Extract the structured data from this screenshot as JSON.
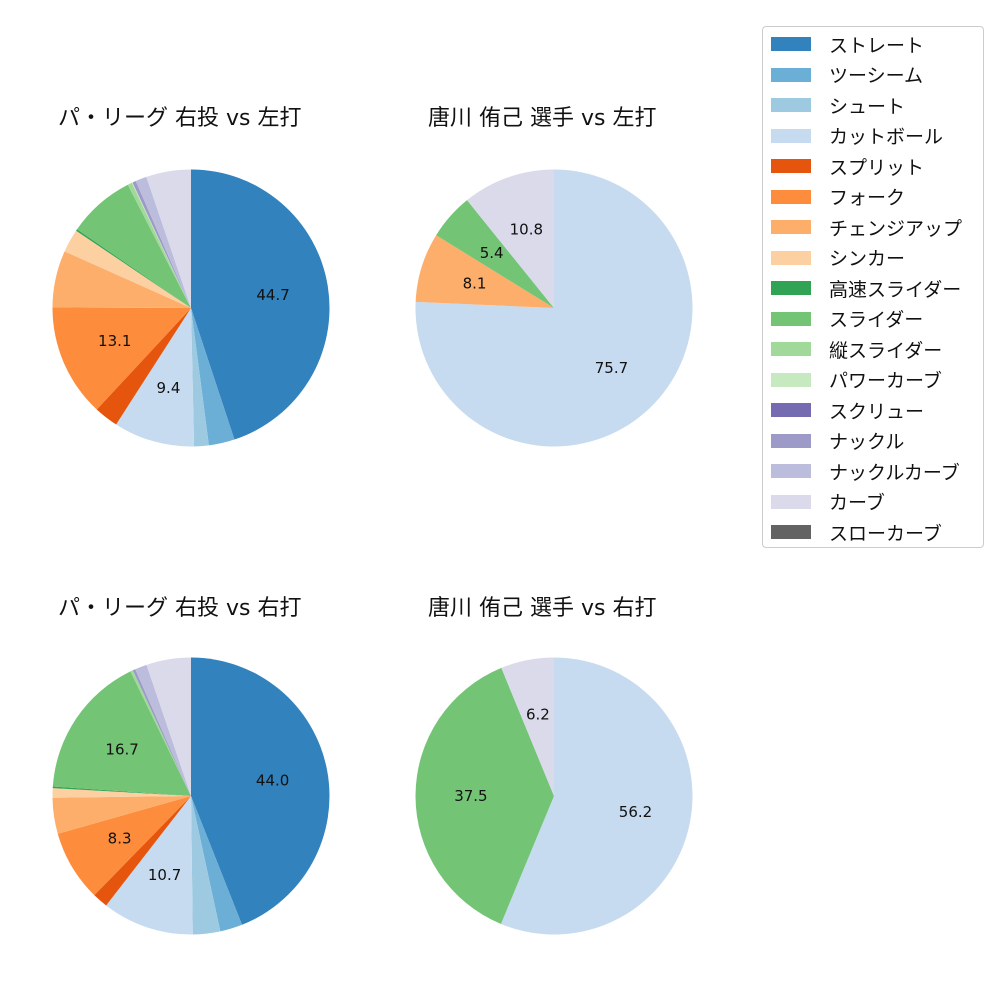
{
  "legend": [
    {
      "label": "ストレート",
      "color": "#3182bd"
    },
    {
      "label": "ツーシーム",
      "color": "#6baed6"
    },
    {
      "label": "シュート",
      "color": "#9ecae1"
    },
    {
      "label": "カットボール",
      "color": "#c6dbef"
    },
    {
      "label": "スプリット",
      "color": "#e6550d"
    },
    {
      "label": "フォーク",
      "color": "#fd8d3c"
    },
    {
      "label": "チェンジアップ",
      "color": "#fdae6b"
    },
    {
      "label": "シンカー",
      "color": "#fdd0a2"
    },
    {
      "label": "高速スライダー",
      "color": "#31a354"
    },
    {
      "label": "スライダー",
      "color": "#74c476"
    },
    {
      "label": "縦スライダー",
      "color": "#a1d99b"
    },
    {
      "label": "パワーカーブ",
      "color": "#c7e9c0"
    },
    {
      "label": "スクリュー",
      "color": "#756bb1"
    },
    {
      "label": "ナックル",
      "color": "#9e9ac8"
    },
    {
      "label": "ナックルカーブ",
      "color": "#bcbddc"
    },
    {
      "label": "カーブ",
      "color": "#dadaeb"
    },
    {
      "label": "スローカーブ",
      "color": "#636363"
    }
  ],
  "chart_data": [
    {
      "type": "pie",
      "title": "パ・リーグ 右投 vs 左打",
      "slices": [
        {
          "name": "ストレート",
          "value": 44.7,
          "label": "44.7"
        },
        {
          "name": "ツーシーム",
          "value": 3.0,
          "label": ""
        },
        {
          "name": "シュート",
          "value": 1.7,
          "label": ""
        },
        {
          "name": "カットボール",
          "value": 9.4,
          "label": "9.4"
        },
        {
          "name": "スプリット",
          "value": 2.8,
          "label": ""
        },
        {
          "name": "フォーク",
          "value": 13.1,
          "label": "13.1"
        },
        {
          "name": "チェンジアップ",
          "value": 6.6,
          "label": ""
        },
        {
          "name": "シンカー",
          "value": 2.7,
          "label": ""
        },
        {
          "name": "高速スライダー",
          "value": 0.2,
          "label": ""
        },
        {
          "name": "スライダー",
          "value": 7.8,
          "label": ""
        },
        {
          "name": "縦スライダー",
          "value": 0.5,
          "label": ""
        },
        {
          "name": "パワーカーブ",
          "value": 0.1,
          "label": ""
        },
        {
          "name": "ナックル",
          "value": 0.4,
          "label": ""
        },
        {
          "name": "ナックルカーブ",
          "value": 1.3,
          "label": ""
        },
        {
          "name": "カーブ",
          "value": 5.2,
          "label": ""
        }
      ]
    },
    {
      "type": "pie",
      "title": "唐川 侑己 選手 vs 左打",
      "slices": [
        {
          "name": "カットボール",
          "value": 75.7,
          "label": "75.7"
        },
        {
          "name": "チェンジアップ",
          "value": 8.1,
          "label": "8.1"
        },
        {
          "name": "スライダー",
          "value": 5.4,
          "label": "5.4"
        },
        {
          "name": "カーブ",
          "value": 10.8,
          "label": "10.8"
        }
      ]
    },
    {
      "type": "pie",
      "title": "パ・リーグ 右投 vs 右打",
      "slices": [
        {
          "name": "ストレート",
          "value": 44.0,
          "label": "44.0"
        },
        {
          "name": "ツーシーム",
          "value": 2.6,
          "label": ""
        },
        {
          "name": "シュート",
          "value": 3.2,
          "label": ""
        },
        {
          "name": "カットボール",
          "value": 10.7,
          "label": "10.7"
        },
        {
          "name": "スプリット",
          "value": 1.8,
          "label": ""
        },
        {
          "name": "フォーク",
          "value": 8.3,
          "label": "8.3"
        },
        {
          "name": "チェンジアップ",
          "value": 4.2,
          "label": ""
        },
        {
          "name": "シンカー",
          "value": 1.1,
          "label": ""
        },
        {
          "name": "高速スライダー",
          "value": 0.2,
          "label": ""
        },
        {
          "name": "スライダー",
          "value": 16.7,
          "label": "16.7"
        },
        {
          "name": "縦スライダー",
          "value": 0.3,
          "label": ""
        },
        {
          "name": "ナックル",
          "value": 0.3,
          "label": ""
        },
        {
          "name": "ナックルカーブ",
          "value": 1.4,
          "label": ""
        },
        {
          "name": "カーブ",
          "value": 5.2,
          "label": ""
        }
      ]
    },
    {
      "type": "pie",
      "title": "唐川 侑己 選手 vs 右打",
      "slices": [
        {
          "name": "カットボール",
          "value": 56.2,
          "label": "56.2"
        },
        {
          "name": "スライダー",
          "value": 37.5,
          "label": "37.5"
        },
        {
          "name": "カーブ",
          "value": 6.2,
          "label": "6.2"
        }
      ]
    }
  ]
}
